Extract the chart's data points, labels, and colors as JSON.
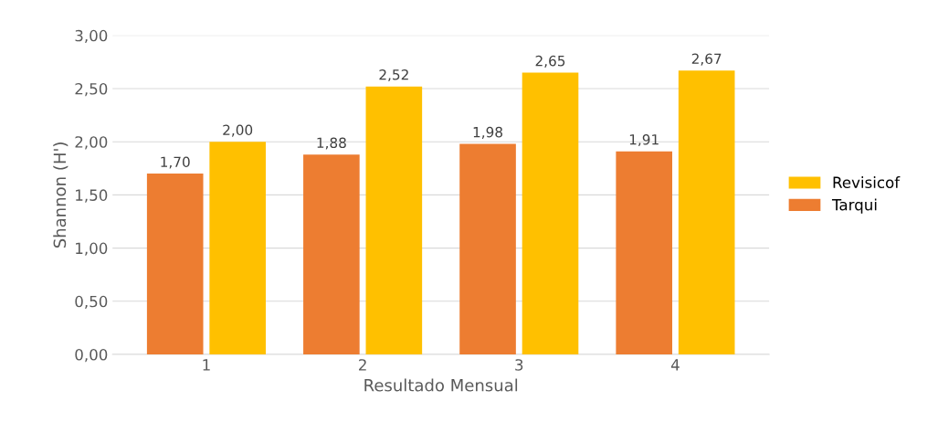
{
  "chart_data": {
    "type": "bar",
    "xlabel": "Resultado Mensual",
    "ylabel": "Shannon (H')",
    "categories": [
      "1",
      "2",
      "3",
      "4"
    ],
    "series": [
      {
        "name": "Tarqui",
        "color": "#ed7d31",
        "values": [
          1.7,
          1.88,
          1.98,
          1.91
        ],
        "value_labels": [
          "1,70",
          "1,88",
          "1,98",
          "1,91"
        ]
      },
      {
        "name": "Revisicof",
        "color": "#ffc000",
        "values": [
          2.0,
          2.52,
          2.65,
          2.67
        ],
        "value_labels": [
          "2,00",
          "2,52",
          "2,65",
          "2,67"
        ]
      }
    ],
    "ylim": [
      0,
      3
    ],
    "yticks": [
      {
        "value": 0,
        "label": "0,00"
      },
      {
        "value": 0.5,
        "label": "0,50"
      },
      {
        "value": 1,
        "label": "1,00"
      },
      {
        "value": 1.5,
        "label": "1,50"
      },
      {
        "value": 2,
        "label": "2,00"
      },
      {
        "value": 2.5,
        "label": "2,50"
      },
      {
        "value": 3,
        "label": "3,00"
      }
    ],
    "grid": "y",
    "legend": "right"
  }
}
